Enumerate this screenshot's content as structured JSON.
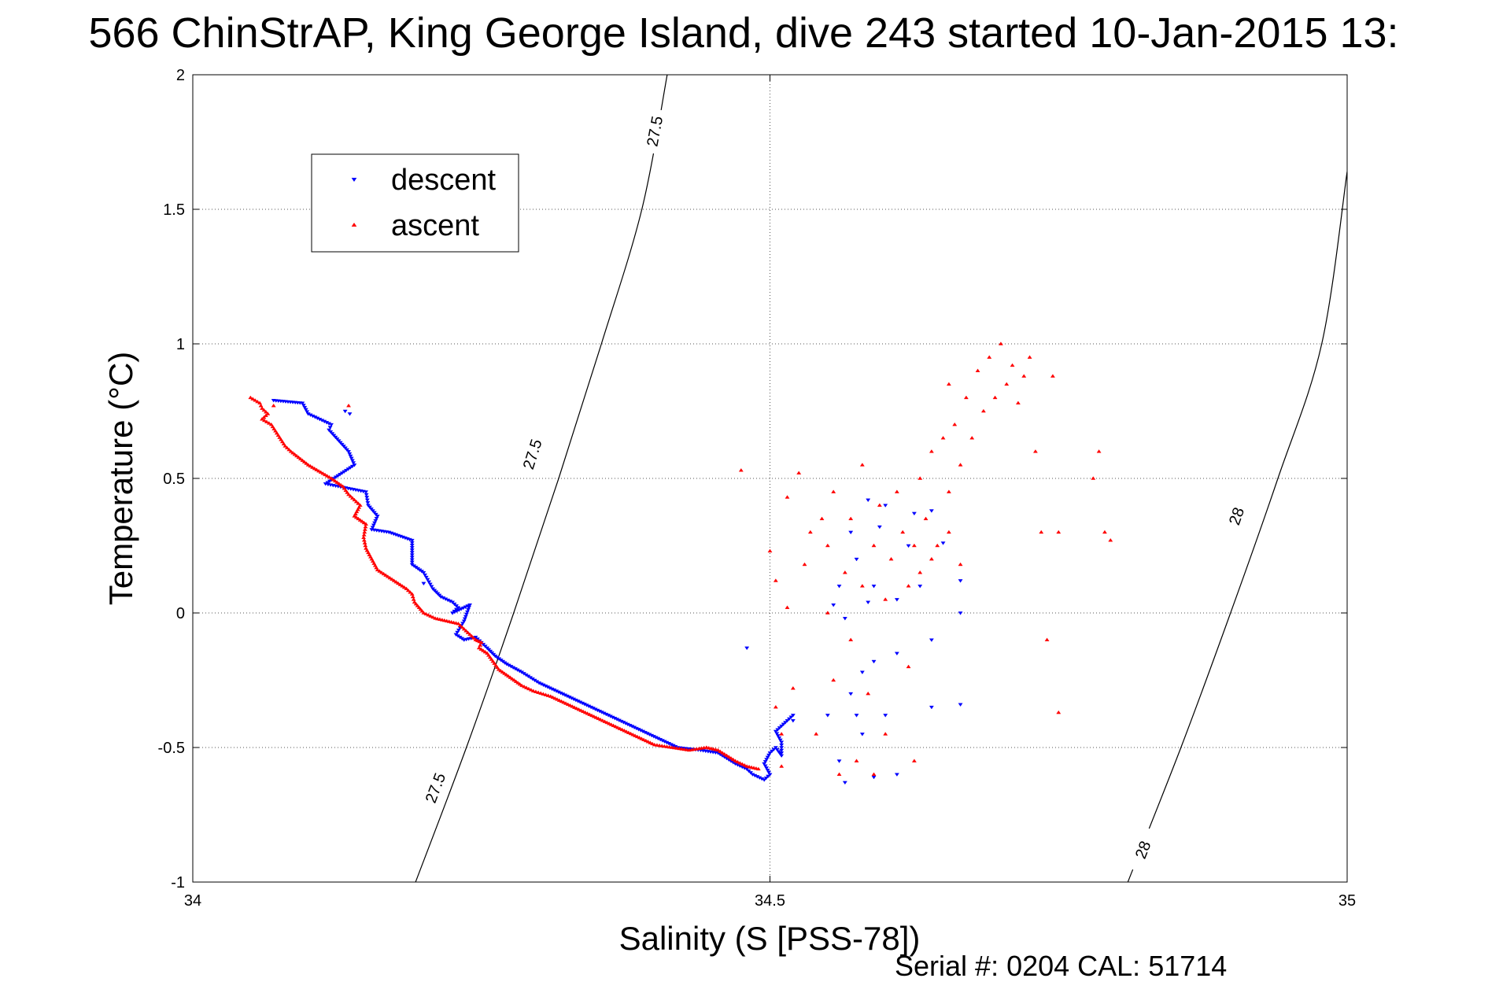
{
  "chart_data": {
    "type": "scatter",
    "title": "566 ChinStrAP, King George Island, dive 243 started 10-Jan-2015 13:",
    "xlabel": "Salinity (S [PSS-78])",
    "ylabel": "Temperature (°C)",
    "xlim": [
      34,
      35
    ],
    "ylim": [
      -1,
      2
    ],
    "xticks": [
      "34",
      "34.5",
      "35"
    ],
    "yticks": [
      "-1",
      "-0.5",
      "0",
      "0.5",
      "1",
      "1.5",
      "2"
    ],
    "grid": true,
    "legend_position": "top-left",
    "footer": "Serial #: 0204  CAL: 51714",
    "contours": [
      {
        "level": "27.5",
        "points": [
          [
            34.193,
            -1.0
          ],
          [
            34.237,
            -0.5
          ],
          [
            34.278,
            0.0
          ],
          [
            34.317,
            0.5
          ],
          [
            34.354,
            1.0
          ],
          [
            34.389,
            1.5
          ],
          [
            34.411,
            2.0
          ]
        ],
        "labels": [
          [
            34.21,
            -0.65
          ],
          [
            34.294,
            0.59
          ],
          [
            34.4,
            1.79
          ]
        ]
      },
      {
        "level": "28",
        "points": [
          [
            34.81,
            -1.0
          ],
          [
            34.856,
            -0.5
          ],
          [
            34.899,
            0.0
          ],
          [
            34.94,
            0.5
          ],
          [
            34.978,
            1.0
          ],
          [
            35.0,
            1.64
          ]
        ],
        "labels": [
          [
            34.823,
            -0.88
          ],
          [
            34.904,
            0.36
          ]
        ]
      }
    ],
    "series": [
      {
        "name": "descent",
        "color": "#0000ff",
        "marker": "triangle-down",
        "trace": [
          [
            34.07,
            0.79
          ],
          [
            34.095,
            0.78
          ],
          [
            34.1,
            0.74
          ],
          [
            34.11,
            0.72
          ],
          [
            34.12,
            0.7
          ],
          [
            34.118,
            0.68
          ],
          [
            34.135,
            0.6
          ],
          [
            34.14,
            0.55
          ],
          [
            34.115,
            0.48
          ],
          [
            34.15,
            0.45
          ],
          [
            34.152,
            0.4
          ],
          [
            34.16,
            0.36
          ],
          [
            34.155,
            0.31
          ],
          [
            34.17,
            0.3
          ],
          [
            34.19,
            0.27
          ],
          [
            34.19,
            0.18
          ],
          [
            34.2,
            0.15
          ],
          [
            34.208,
            0.09
          ],
          [
            34.215,
            0.06
          ],
          [
            34.225,
            0.04
          ],
          [
            34.23,
            0.02
          ],
          [
            34.225,
            0.0
          ],
          [
            34.24,
            0.03
          ],
          [
            34.235,
            -0.03
          ],
          [
            34.228,
            -0.08
          ],
          [
            34.235,
            -0.1
          ],
          [
            34.245,
            -0.09
          ],
          [
            34.255,
            -0.13
          ],
          [
            34.262,
            -0.16
          ],
          [
            34.272,
            -0.19
          ],
          [
            34.285,
            -0.22
          ],
          [
            34.3,
            -0.26
          ],
          [
            34.315,
            -0.29
          ],
          [
            34.33,
            -0.32
          ],
          [
            34.345,
            -0.35
          ],
          [
            34.36,
            -0.38
          ],
          [
            34.375,
            -0.41
          ],
          [
            34.39,
            -0.44
          ],
          [
            34.405,
            -0.47
          ],
          [
            34.42,
            -0.5
          ],
          [
            34.44,
            -0.51
          ],
          [
            34.455,
            -0.52
          ],
          [
            34.47,
            -0.56
          ],
          [
            34.48,
            -0.58
          ],
          [
            34.485,
            -0.6
          ],
          [
            34.495,
            -0.62
          ],
          [
            34.5,
            -0.6
          ],
          [
            34.495,
            -0.56
          ],
          [
            34.5,
            -0.52
          ],
          [
            34.505,
            -0.5
          ],
          [
            34.51,
            -0.53
          ],
          [
            34.51,
            -0.48
          ],
          [
            34.505,
            -0.44
          ],
          [
            34.515,
            -0.4
          ],
          [
            34.52,
            -0.38
          ]
        ],
        "scatter": [
          [
            34.132,
            0.75
          ],
          [
            34.136,
            0.74
          ],
          [
            34.2,
            0.11
          ],
          [
            34.48,
            -0.13
          ],
          [
            34.52,
            -0.4
          ],
          [
            34.55,
            -0.38
          ],
          [
            34.575,
            -0.38
          ],
          [
            34.6,
            -0.38
          ],
          [
            34.57,
            -0.3
          ],
          [
            34.58,
            -0.45
          ],
          [
            34.56,
            -0.55
          ],
          [
            34.565,
            -0.63
          ],
          [
            34.59,
            -0.61
          ],
          [
            34.61,
            -0.6
          ],
          [
            34.64,
            -0.1
          ],
          [
            34.63,
            0.1
          ],
          [
            34.62,
            0.25
          ],
          [
            34.65,
            0.26
          ],
          [
            34.625,
            0.37
          ],
          [
            34.6,
            0.4
          ],
          [
            34.595,
            0.32
          ],
          [
            34.585,
            0.42
          ],
          [
            34.57,
            0.3
          ],
          [
            34.575,
            0.2
          ],
          [
            34.56,
            0.1
          ],
          [
            34.555,
            0.03
          ],
          [
            34.565,
            -0.02
          ],
          [
            34.585,
            0.04
          ],
          [
            34.59,
            0.1
          ],
          [
            34.61,
            0.05
          ],
          [
            34.665,
            0.0
          ],
          [
            34.64,
            0.38
          ],
          [
            34.665,
            0.12
          ],
          [
            34.64,
            -0.35
          ],
          [
            34.665,
            -0.34
          ],
          [
            34.59,
            -0.18
          ],
          [
            34.58,
            -0.22
          ],
          [
            34.61,
            -0.15
          ]
        ]
      },
      {
        "name": "ascent",
        "color": "#ff0000",
        "marker": "triangle-up",
        "trace": [
          [
            34.05,
            0.8
          ],
          [
            34.058,
            0.78
          ],
          [
            34.06,
            0.76
          ],
          [
            34.065,
            0.74
          ],
          [
            34.06,
            0.72
          ],
          [
            34.068,
            0.7
          ],
          [
            34.08,
            0.62
          ],
          [
            34.085,
            0.6
          ],
          [
            34.1,
            0.55
          ],
          [
            34.12,
            0.5
          ],
          [
            34.13,
            0.47
          ],
          [
            34.135,
            0.44
          ],
          [
            34.145,
            0.4
          ],
          [
            34.14,
            0.36
          ],
          [
            34.15,
            0.33
          ],
          [
            34.148,
            0.28
          ],
          [
            34.15,
            0.24
          ],
          [
            34.155,
            0.2
          ],
          [
            34.16,
            0.16
          ],
          [
            34.185,
            0.09
          ],
          [
            34.19,
            0.07
          ],
          [
            34.192,
            0.04
          ],
          [
            34.2,
            0.0
          ],
          [
            34.21,
            -0.02
          ],
          [
            34.22,
            -0.03
          ],
          [
            34.23,
            -0.04
          ],
          [
            34.24,
            -0.08
          ],
          [
            34.245,
            -0.1
          ],
          [
            34.25,
            -0.11
          ],
          [
            34.248,
            -0.13
          ],
          [
            34.255,
            -0.15
          ],
          [
            34.26,
            -0.18
          ],
          [
            34.265,
            -0.21
          ],
          [
            34.275,
            -0.24
          ],
          [
            34.285,
            -0.27
          ],
          [
            34.295,
            -0.29
          ],
          [
            34.31,
            -0.31
          ],
          [
            34.325,
            -0.34
          ],
          [
            34.34,
            -0.37
          ],
          [
            34.355,
            -0.4
          ],
          [
            34.37,
            -0.43
          ],
          [
            34.385,
            -0.46
          ],
          [
            34.4,
            -0.49
          ],
          [
            34.415,
            -0.5
          ],
          [
            34.43,
            -0.51
          ],
          [
            34.445,
            -0.5
          ],
          [
            34.455,
            -0.51
          ],
          [
            34.47,
            -0.55
          ],
          [
            34.48,
            -0.57
          ],
          [
            34.49,
            -0.58
          ]
        ],
        "scatter": [
          [
            34.07,
            0.77
          ],
          [
            34.135,
            0.77
          ],
          [
            34.475,
            0.53
          ],
          [
            34.5,
            0.23
          ],
          [
            34.505,
            0.12
          ],
          [
            34.505,
            -0.35
          ],
          [
            34.51,
            -0.45
          ],
          [
            34.51,
            -0.57
          ],
          [
            34.515,
            0.02
          ],
          [
            34.515,
            0.43
          ],
          [
            34.52,
            -0.28
          ],
          [
            34.525,
            0.52
          ],
          [
            34.53,
            0.18
          ],
          [
            34.535,
            0.3
          ],
          [
            34.54,
            -0.45
          ],
          [
            34.545,
            0.35
          ],
          [
            34.55,
            0.0
          ],
          [
            34.55,
            0.25
          ],
          [
            34.555,
            0.45
          ],
          [
            34.555,
            -0.25
          ],
          [
            34.56,
            -0.6
          ],
          [
            34.565,
            0.15
          ],
          [
            34.57,
            -0.1
          ],
          [
            34.57,
            0.35
          ],
          [
            34.575,
            -0.55
          ],
          [
            34.58,
            0.55
          ],
          [
            34.58,
            0.1
          ],
          [
            34.585,
            -0.3
          ],
          [
            34.59,
            0.25
          ],
          [
            34.59,
            -0.6
          ],
          [
            34.595,
            0.4
          ],
          [
            34.6,
            0.05
          ],
          [
            34.6,
            -0.45
          ],
          [
            34.605,
            0.2
          ],
          [
            34.61,
            0.45
          ],
          [
            34.615,
            0.3
          ],
          [
            34.62,
            -0.2
          ],
          [
            34.62,
            0.1
          ],
          [
            34.625,
            -0.55
          ],
          [
            34.63,
            0.5
          ],
          [
            34.63,
            0.15
          ],
          [
            34.635,
            0.35
          ],
          [
            34.64,
            0.6
          ],
          [
            34.645,
            0.25
          ],
          [
            34.65,
            0.65
          ],
          [
            34.655,
            0.45
          ],
          [
            34.66,
            0.7
          ],
          [
            34.665,
            0.55
          ],
          [
            34.67,
            0.8
          ],
          [
            34.675,
            0.65
          ],
          [
            34.68,
            0.9
          ],
          [
            34.685,
            0.75
          ],
          [
            34.69,
            0.95
          ],
          [
            34.695,
            0.8
          ],
          [
            34.7,
            1.0
          ],
          [
            34.705,
            0.85
          ],
          [
            34.71,
            0.92
          ],
          [
            34.715,
            0.78
          ],
          [
            34.72,
            0.88
          ],
          [
            34.725,
            0.95
          ],
          [
            34.73,
            0.6
          ],
          [
            34.735,
            0.3
          ],
          [
            34.74,
            -0.1
          ],
          [
            34.745,
            0.88
          ],
          [
            34.75,
            0.3
          ],
          [
            34.75,
            -0.37
          ],
          [
            34.78,
            0.5
          ],
          [
            34.785,
            0.6
          ],
          [
            34.79,
            0.3
          ],
          [
            34.795,
            0.27
          ],
          [
            34.655,
            0.85
          ],
          [
            34.665,
            0.18
          ],
          [
            34.655,
            0.3
          ],
          [
            34.64,
            0.2
          ],
          [
            34.625,
            0.25
          ]
        ]
      }
    ]
  }
}
